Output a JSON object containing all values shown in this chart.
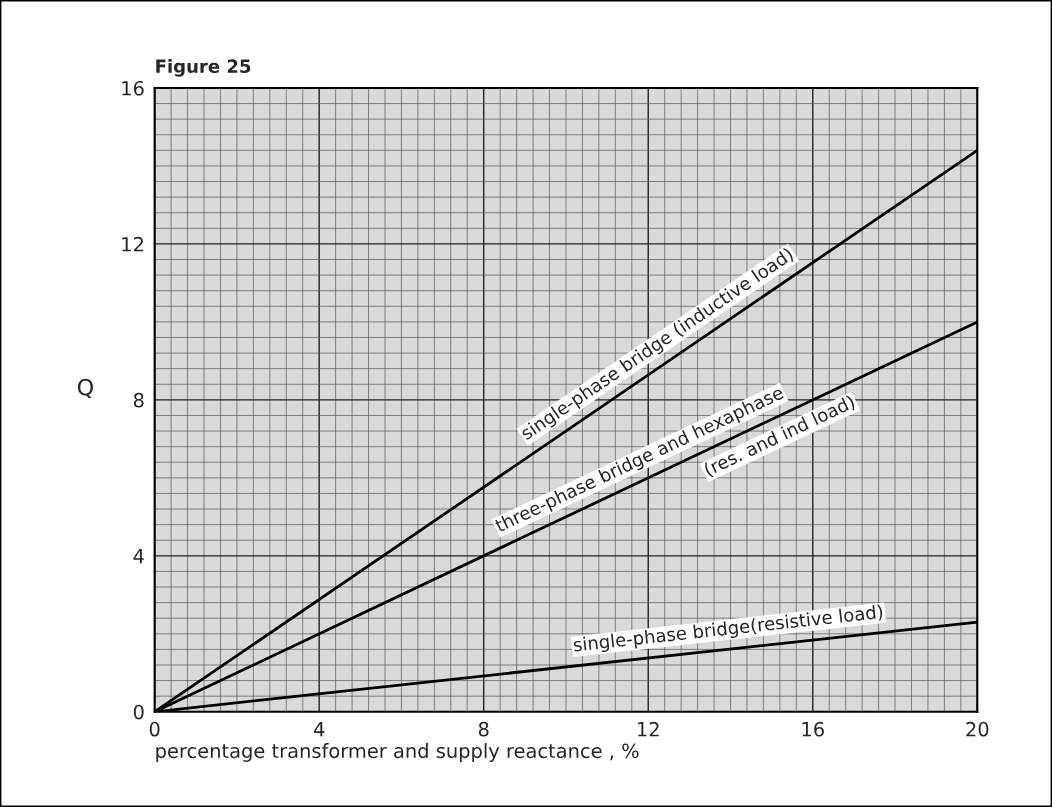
{
  "chart_data": {
    "type": "line",
    "title": "Figure 25",
    "xlabel": "percentage transformer and supply reactance , %",
    "ylabel": "Q",
    "x": [
      0,
      20
    ],
    "series": [
      {
        "color": "#000000",
        "values": [
          0,
          14.4
        ]
      },
      {
        "color": "#000000",
        "values": [
          0,
          10
        ]
      },
      {
        "color": "#000000",
        "values": [
          0,
          2.3
        ]
      }
    ],
    "xlim": [
      0,
      20
    ],
    "ylim": [
      0,
      16
    ],
    "xticks": [
      0,
      4,
      8,
      12,
      16,
      20
    ],
    "yticks": [
      0,
      4,
      8,
      12,
      16
    ],
    "grid": true,
    "legend": false,
    "marker": "none",
    "line_style": "solid",
    "annotations": [
      {
        "text": "single-phase bridge (inductive load)",
        "x": 12.5,
        "y": 9
      },
      {
        "text": "three-phase bridge and hexaphase",
        "x": 12,
        "y": 6
      },
      {
        "text": "(res. and ind load)",
        "x": 15,
        "y": 7.5
      },
      {
        "text": "single-phase bridge(resistive load)",
        "x": 14,
        "y": 1.61
      }
    ]
  }
}
